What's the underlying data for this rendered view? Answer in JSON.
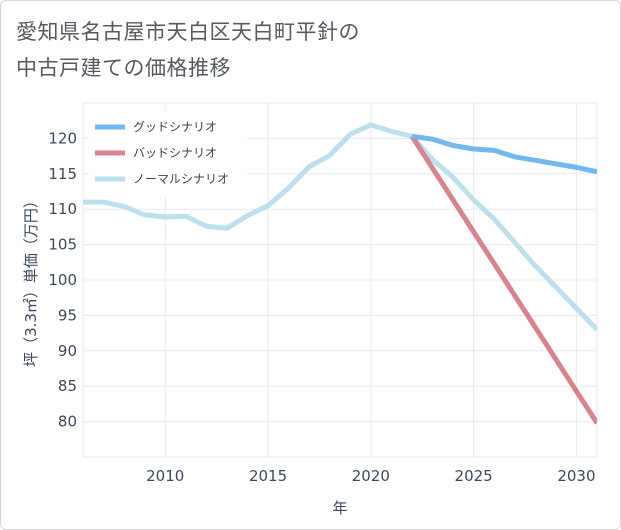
{
  "title": {
    "line1": "愛知県名古屋市天白区天白町平針の",
    "line2": "中古戸建ての価格推移"
  },
  "chart_data": {
    "type": "line",
    "title": "愛知県名古屋市天白区天白町平針の中古戸建ての価格推移",
    "xlabel": "年",
    "ylabel": "坪（3.3㎡）単価（万円）",
    "xlim": [
      2006,
      2031
    ],
    "ylim": [
      75,
      125
    ],
    "x_ticks": [
      2010,
      2015,
      2020,
      2025,
      2030
    ],
    "y_ticks": [
      80,
      85,
      90,
      95,
      100,
      105,
      110,
      115,
      120
    ],
    "grid": true,
    "legend_position": "top-left",
    "series": [
      {
        "name": "グッドシナリオ",
        "color": "#72b8ee",
        "x": [
          2022,
          2023,
          2024,
          2025,
          2026,
          2027,
          2028,
          2029,
          2030,
          2031
        ],
        "values": [
          120.3,
          119.9,
          119.0,
          118.5,
          118.3,
          117.4,
          116.9,
          116.4,
          115.9,
          115.3
        ]
      },
      {
        "name": "バッドシナリオ",
        "color": "#d9838d",
        "x": [
          2022,
          2023,
          2024,
          2025,
          2026,
          2027,
          2028,
          2029,
          2030,
          2031
        ],
        "values": [
          120.3,
          115.8,
          111.3,
          106.8,
          102.3,
          97.8,
          93.3,
          88.8,
          84.3,
          79.8
        ]
      },
      {
        "name": "ノーマルシナリオ",
        "color": "#bde0ef",
        "x": [
          2006,
          2007,
          2008,
          2009,
          2010,
          2011,
          2012,
          2013,
          2014,
          2015,
          2016,
          2017,
          2018,
          2019,
          2020,
          2021,
          2022,
          2023,
          2024,
          2025,
          2026,
          2027,
          2028,
          2029,
          2030,
          2031
        ],
        "values": [
          111.0,
          111.0,
          110.4,
          109.2,
          108.9,
          109.0,
          107.6,
          107.3,
          109.1,
          110.5,
          113.0,
          116.0,
          117.6,
          120.6,
          121.9,
          121.0,
          120.3,
          117.0,
          114.5,
          111.3,
          108.6,
          105.3,
          102.0,
          99.0,
          96.0,
          93.0
        ]
      }
    ]
  }
}
